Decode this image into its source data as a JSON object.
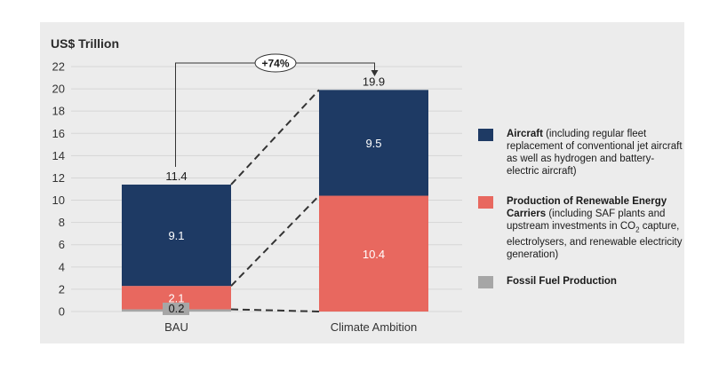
{
  "chart_data": {
    "type": "stacked-bar",
    "ylabel": "US$ Trillion",
    "ylim": [
      0,
      22
    ],
    "yticks": [
      0,
      2,
      4,
      6,
      8,
      10,
      12,
      14,
      16,
      18,
      20,
      22
    ],
    "categories": [
      "BAU",
      "Climate Ambition"
    ],
    "series": [
      {
        "name": "Fossil Fuel Production",
        "color": "#a6a6a6",
        "values": [
          0.2,
          0
        ],
        "labels": [
          "0.2",
          ""
        ]
      },
      {
        "name": "Production of Renewable Energy Carriers",
        "color": "#e8685f",
        "values": [
          2.1,
          10.4
        ],
        "labels": [
          "2.1",
          "10.4"
        ]
      },
      {
        "name": "Aircraft",
        "color": "#1e3a64",
        "values": [
          9.1,
          9.5
        ],
        "labels": [
          "9.1",
          "9.5"
        ]
      }
    ],
    "totals": [
      "11.4",
      "19.9"
    ],
    "annotation": "+74%"
  },
  "legend": [
    {
      "name": "Aircraft",
      "detail": " (including regular fleet replacement of conventional jet aircraft as well as hydrogen and battery-electric aircraft)",
      "color": "#1e3a64"
    },
    {
      "name": "Production of Renewable Energy Carriers",
      "detail_before": " (including SAF plants and upstream investments in CO",
      "detail_sub": "2",
      "detail_after": " capture, electrolysers, and renewable electricity generation)",
      "color": "#e8685f"
    },
    {
      "name": "Fossil Fuel Production",
      "color": "#a6a6a6"
    }
  ]
}
